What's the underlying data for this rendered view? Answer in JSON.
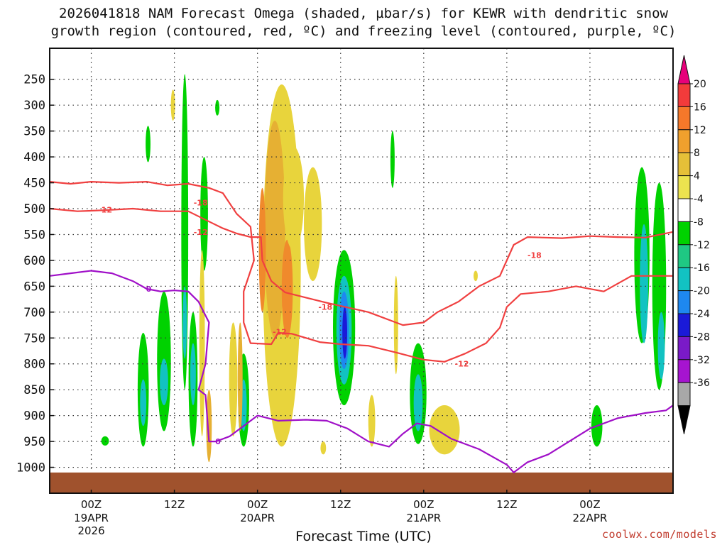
{
  "title": {
    "line1": "2026041818 NAM Forecast Omega (shaded, µbar/s) for KEWR with dendritic snow",
    "line2": "growth region (contoured, red, ºC) and freezing level (contoured, purple, ºC)"
  },
  "credit": "coolwx.com/models",
  "chart_data": {
    "type": "heatmap",
    "title": "2026041818 NAM Forecast Omega (shaded, µbar/s) for KEWR with dendritic snow growth region (contoured, red, ºC) and freezing level (contoured, purple, ºC)",
    "xlabel": "Forecast Time (UTC)",
    "ylabel": "",
    "x_range_hours": [
      -6,
      84
    ],
    "x_ticks": [
      {
        "hour": 0,
        "label": "00Z",
        "date": "19APR",
        "year": "2026"
      },
      {
        "hour": 12,
        "label": "12Z"
      },
      {
        "hour": 24,
        "label": "00Z",
        "date": "20APR"
      },
      {
        "hour": 36,
        "label": "12Z"
      },
      {
        "hour": 48,
        "label": "00Z",
        "date": "21APR"
      },
      {
        "hour": 60,
        "label": "12Z"
      },
      {
        "hour": 72,
        "label": "00Z",
        "date": "22APR"
      }
    ],
    "y_range_hpa": [
      1050,
      190
    ],
    "y_ticks": [
      250,
      300,
      350,
      400,
      450,
      500,
      550,
      600,
      650,
      700,
      750,
      800,
      850,
      900,
      950,
      1000
    ],
    "grid": true,
    "colorbar": {
      "ticks": [
        "20",
        "16",
        "12",
        "8",
        "4",
        "-4",
        "-8",
        "-12",
        "-16",
        "-20",
        "-24",
        "-28",
        "-32",
        "-36"
      ],
      "colors": [
        "#e6007a",
        "#f23b3b",
        "#f5782a",
        "#f0a02d",
        "#e5c038",
        "#ece34f",
        "#ffffff",
        "#00d200",
        "#1fc883",
        "#12c2c2",
        "#1e88f0",
        "#1a1ad8",
        "#7a1ac8",
        "#a614d0",
        "#a8a8a8",
        "#000000"
      ]
    },
    "omega_cells": [
      {
        "hour": 13.5,
        "p_top": 240,
        "p_bot": 850,
        "width_h": 1.0,
        "value": -6
      },
      {
        "hour": 13.5,
        "p_top": 650,
        "p_bot": 790,
        "width_h": 0.6,
        "value": -12
      },
      {
        "hour": 14.7,
        "p_top": 700,
        "p_bot": 960,
        "width_h": 1.3,
        "value": -7
      },
      {
        "hour": 14.7,
        "p_top": 760,
        "p_bot": 880,
        "width_h": 0.8,
        "value": -12
      },
      {
        "hour": 10.5,
        "p_top": 660,
        "p_bot": 930,
        "width_h": 2.0,
        "value": -7
      },
      {
        "hour": 10.5,
        "p_top": 790,
        "p_bot": 880,
        "width_h": 1.2,
        "value": -12
      },
      {
        "hour": 7.5,
        "p_top": 740,
        "p_bot": 960,
        "width_h": 1.6,
        "value": -7
      },
      {
        "hour": 7.5,
        "p_top": 830,
        "p_bot": 920,
        "width_h": 0.9,
        "value": -12
      },
      {
        "hour": 2.0,
        "p_top": 940,
        "p_bot": 958,
        "width_h": 1.1,
        "value": -6
      },
      {
        "hour": 8.2,
        "p_top": 340,
        "p_bot": 410,
        "width_h": 0.7,
        "value": -6
      },
      {
        "hour": 16.3,
        "p_top": 400,
        "p_bot": 620,
        "width_h": 1.1,
        "value": -6
      },
      {
        "hour": 18.2,
        "p_top": 290,
        "p_bot": 320,
        "width_h": 0.4,
        "value": -6
      },
      {
        "hour": 11.8,
        "p_top": 270,
        "p_bot": 330,
        "width_h": 0.4,
        "value": 5
      },
      {
        "hour": 22.0,
        "p_top": 780,
        "p_bot": 960,
        "width_h": 1.6,
        "value": -7
      },
      {
        "hour": 22.0,
        "p_top": 830,
        "p_bot": 930,
        "width_h": 0.9,
        "value": -12
      },
      {
        "hour": 36.5,
        "p_top": 580,
        "p_bot": 880,
        "width_h": 3.2,
        "value": -7
      },
      {
        "hour": 36.5,
        "p_top": 630,
        "p_bot": 840,
        "width_h": 2.2,
        "value": -12
      },
      {
        "hour": 36.5,
        "p_top": 660,
        "p_bot": 810,
        "width_h": 1.4,
        "value": -17
      },
      {
        "hour": 36.6,
        "p_top": 690,
        "p_bot": 790,
        "width_h": 0.7,
        "value": -22
      },
      {
        "hour": 47.2,
        "p_top": 760,
        "p_bot": 955,
        "width_h": 2.4,
        "value": -7
      },
      {
        "hour": 47.2,
        "p_top": 820,
        "p_bot": 930,
        "width_h": 1.3,
        "value": -12
      },
      {
        "hour": 79.5,
        "p_top": 420,
        "p_bot": 760,
        "width_h": 2.2,
        "value": -7
      },
      {
        "hour": 79.8,
        "p_top": 530,
        "p_bot": 760,
        "width_h": 1.2,
        "value": -12
      },
      {
        "hour": 82.0,
        "p_top": 450,
        "p_bot": 850,
        "width_h": 2.0,
        "value": -7
      },
      {
        "hour": 82.3,
        "p_top": 700,
        "p_bot": 830,
        "width_h": 1.0,
        "value": -12
      },
      {
        "hour": 79.8,
        "p_top": 430,
        "p_bot": 480,
        "width_h": 0.6,
        "value": -6
      },
      {
        "hour": 73.0,
        "p_top": 880,
        "p_bot": 960,
        "width_h": 1.6,
        "value": -7
      },
      {
        "hour": 27.5,
        "p_top": 260,
        "p_bot": 960,
        "width_h": 5.5,
        "value": 6
      },
      {
        "hour": 26.5,
        "p_top": 330,
        "p_bot": 750,
        "width_h": 3.0,
        "value": 9
      },
      {
        "hour": 28.3,
        "p_top": 560,
        "p_bot": 750,
        "width_h": 1.6,
        "value": 13
      },
      {
        "hour": 24.7,
        "p_top": 460,
        "p_bot": 700,
        "width_h": 1.0,
        "value": 13
      },
      {
        "hour": 29.2,
        "p_top": 380,
        "p_bot": 580,
        "width_h": 3.0,
        "value": 6
      },
      {
        "hour": 32.0,
        "p_top": 420,
        "p_bot": 640,
        "width_h": 2.6,
        "value": 6
      },
      {
        "hour": 20.5,
        "p_top": 720,
        "p_bot": 940,
        "width_h": 1.2,
        "value": 6
      },
      {
        "hour": 16.0,
        "p_top": 580,
        "p_bot": 940,
        "width_h": 0.8,
        "value": 6
      },
      {
        "hour": 17.0,
        "p_top": 850,
        "p_bot": 990,
        "width_h": 0.8,
        "value": 8
      },
      {
        "hour": 21.5,
        "p_top": 720,
        "p_bot": 930,
        "width_h": 0.7,
        "value": 9
      },
      {
        "hour": 40.5,
        "p_top": 860,
        "p_bot": 960,
        "width_h": 1.0,
        "value": 6
      },
      {
        "hour": 44.0,
        "p_top": 630,
        "p_bot": 820,
        "width_h": 0.6,
        "value": 6
      },
      {
        "hour": 51.0,
        "p_top": 880,
        "p_bot": 975,
        "width_h": 4.4,
        "value": 6
      },
      {
        "hour": 33.5,
        "p_top": 950,
        "p_bot": 975,
        "width_h": 0.8,
        "value": 6
      },
      {
        "hour": 43.5,
        "p_top": 350,
        "p_bot": 460,
        "width_h": 0.6,
        "value": -6
      },
      {
        "hour": 55.5,
        "p_top": 620,
        "p_bot": 640,
        "width_h": 0.3,
        "value": 5
      }
    ],
    "contours": [
      {
        "name": "-12 C (upper)",
        "color": "#f04040",
        "label": "-12",
        "label_at": [
          2.0,
          502
        ],
        "points": [
          [
            -6,
            500
          ],
          [
            -2,
            505
          ],
          [
            2,
            503
          ],
          [
            6,
            500
          ],
          [
            10,
            505
          ],
          [
            14,
            505
          ],
          [
            17,
            525
          ],
          [
            19,
            538
          ],
          [
            21,
            548
          ],
          [
            23,
            555
          ],
          [
            24.5,
            555
          ],
          [
            24.7,
            600
          ],
          [
            26,
            640
          ],
          [
            28,
            662
          ],
          [
            31,
            672
          ],
          [
            34,
            682
          ],
          [
            36,
            688
          ],
          [
            40,
            700
          ],
          [
            45,
            725
          ],
          [
            48,
            720
          ],
          [
            50,
            700
          ],
          [
            53,
            680
          ],
          [
            56,
            650
          ],
          [
            59,
            630
          ],
          [
            61,
            570
          ],
          [
            63,
            555
          ],
          [
            68,
            557
          ],
          [
            72,
            553
          ],
          [
            76,
            555
          ],
          [
            80,
            556
          ],
          [
            84,
            545
          ]
        ]
      },
      {
        "name": "-12 C (lower)",
        "color": "#f04040",
        "label": "-12",
        "label_at": [
          47.5,
          790
        ],
        "points": [
          [
            -6,
            448
          ],
          [
            -3,
            452
          ],
          [
            0,
            448
          ],
          [
            4,
            450
          ],
          [
            8,
            448
          ],
          [
            11,
            455
          ],
          [
            14,
            452
          ],
          [
            17,
            460
          ],
          [
            19,
            470
          ],
          [
            21,
            510
          ],
          [
            23,
            535
          ],
          [
            23.5,
            600
          ],
          [
            22,
            660
          ],
          [
            22,
            720
          ],
          [
            23,
            760
          ],
          [
            26,
            762
          ],
          [
            27,
            740
          ],
          [
            29,
            742
          ],
          [
            33,
            758
          ],
          [
            36,
            762
          ],
          [
            40,
            765
          ],
          [
            44,
            778
          ],
          [
            48,
            792
          ],
          [
            51,
            796
          ],
          [
            54,
            780
          ],
          [
            57,
            760
          ],
          [
            59,
            730
          ],
          [
            60,
            690
          ],
          [
            62,
            665
          ],
          [
            66,
            660
          ],
          [
            70,
            650
          ],
          [
            74,
            660
          ],
          [
            78,
            630
          ],
          [
            84,
            630
          ]
        ]
      },
      {
        "name": "-18 C (label)",
        "color": "#f04040",
        "label": "-18",
        "label_at": [
          14.8,
          488
        ],
        "points": []
      },
      {
        "name": "0 C freezing level",
        "color": "#a010c8",
        "label": "0",
        "label_at": [
          8.5,
          655
        ],
        "points": [
          [
            -6,
            630
          ],
          [
            -3,
            625
          ],
          [
            0,
            620
          ],
          [
            3,
            625
          ],
          [
            6,
            640
          ],
          [
            8,
            655
          ],
          [
            10,
            660
          ],
          [
            12,
            658
          ],
          [
            14,
            660
          ],
          [
            15.5,
            680
          ],
          [
            17,
            720
          ],
          [
            16.5,
            800
          ],
          [
            15.5,
            850
          ],
          [
            16.5,
            860
          ],
          [
            17,
            950
          ],
          [
            18,
            950
          ],
          [
            20,
            940
          ],
          [
            22,
            920
          ],
          [
            24,
            900
          ],
          [
            27,
            910
          ],
          [
            31,
            908
          ],
          [
            34,
            910
          ],
          [
            37,
            925
          ],
          [
            40,
            950
          ],
          [
            43,
            960
          ],
          [
            45,
            935
          ],
          [
            47,
            915
          ],
          [
            49,
            920
          ],
          [
            52,
            945
          ],
          [
            56,
            965
          ],
          [
            60,
            995
          ],
          [
            61,
            1010
          ],
          [
            63,
            990
          ],
          [
            66,
            975
          ],
          [
            69,
            950
          ],
          [
            72,
            925
          ],
          [
            76,
            905
          ],
          [
            80,
            895
          ],
          [
            83,
            890
          ],
          [
            84,
            880
          ]
        ]
      }
    ],
    "contour_labels": [
      {
        "text": "-18",
        "hour": 15.8,
        "p": 488,
        "color": "#f04040"
      },
      {
        "text": "-12",
        "hour": 15.8,
        "p": 545,
        "color": "#f04040"
      },
      {
        "text": "-12",
        "hour": 2.0,
        "p": 502,
        "color": "#f04040"
      },
      {
        "text": "-12",
        "hour": 27.2,
        "p": 738,
        "color": "#f04040"
      },
      {
        "text": "-18",
        "hour": 33.8,
        "p": 690,
        "color": "#f04040"
      },
      {
        "text": "-12",
        "hour": 53.5,
        "p": 800,
        "color": "#f04040"
      },
      {
        "text": "-18",
        "hour": 64.0,
        "p": 590,
        "color": "#f04040"
      },
      {
        "text": "0",
        "hour": 8.3,
        "p": 655,
        "color": "#a010c8"
      },
      {
        "text": "0",
        "hour": 18.3,
        "p": 950,
        "color": "#a010c8"
      }
    ],
    "ground": {
      "p_top": 1010,
      "color": "#a0522d"
    }
  }
}
